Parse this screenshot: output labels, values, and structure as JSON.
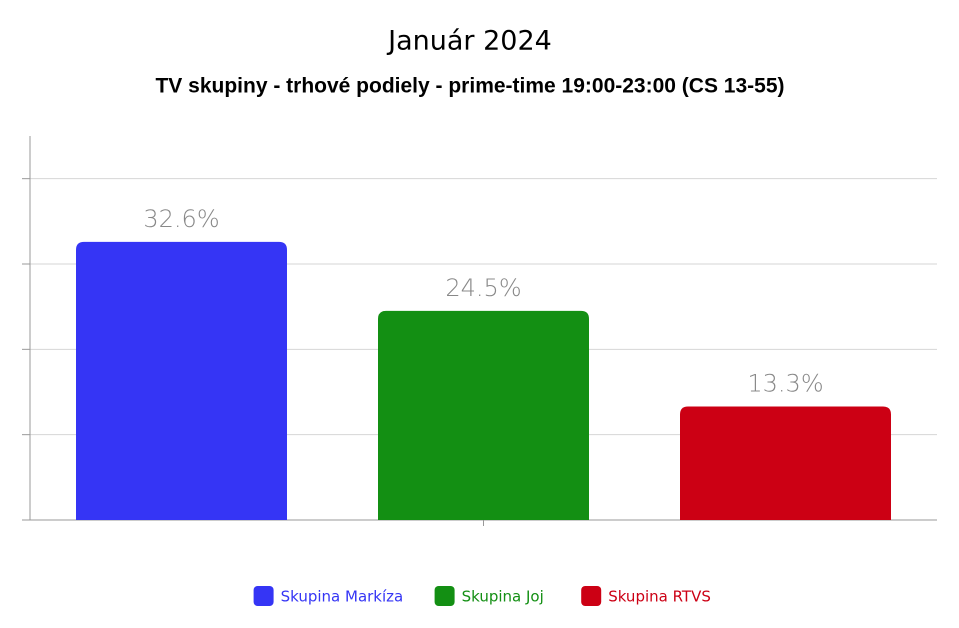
{
  "chart_data": {
    "type": "bar",
    "title": "Január 2024",
    "subtitle": "TV skupiny - trhové podiely - prime-time 19:00-23:00 (CS 13-55)",
    "categories": [
      null
    ],
    "series": [
      {
        "name": "Skupina Markíza",
        "color": "#3535f5",
        "values": [
          32.6
        ],
        "value_labels": [
          "32.6%"
        ]
      },
      {
        "name": "Skupina Joj",
        "color": "#138f13",
        "values": [
          24.5
        ],
        "value_labels": [
          "24.5%"
        ]
      },
      {
        "name": "Skupina RTVS",
        "color": "#cc0014",
        "values": [
          13.3
        ],
        "value_labels": [
          "13.3%"
        ]
      }
    ],
    "ylim": [
      0,
      45
    ],
    "yticks": [
      0,
      10,
      20,
      30,
      40
    ],
    "grid": true,
    "legend": "bottom"
  }
}
